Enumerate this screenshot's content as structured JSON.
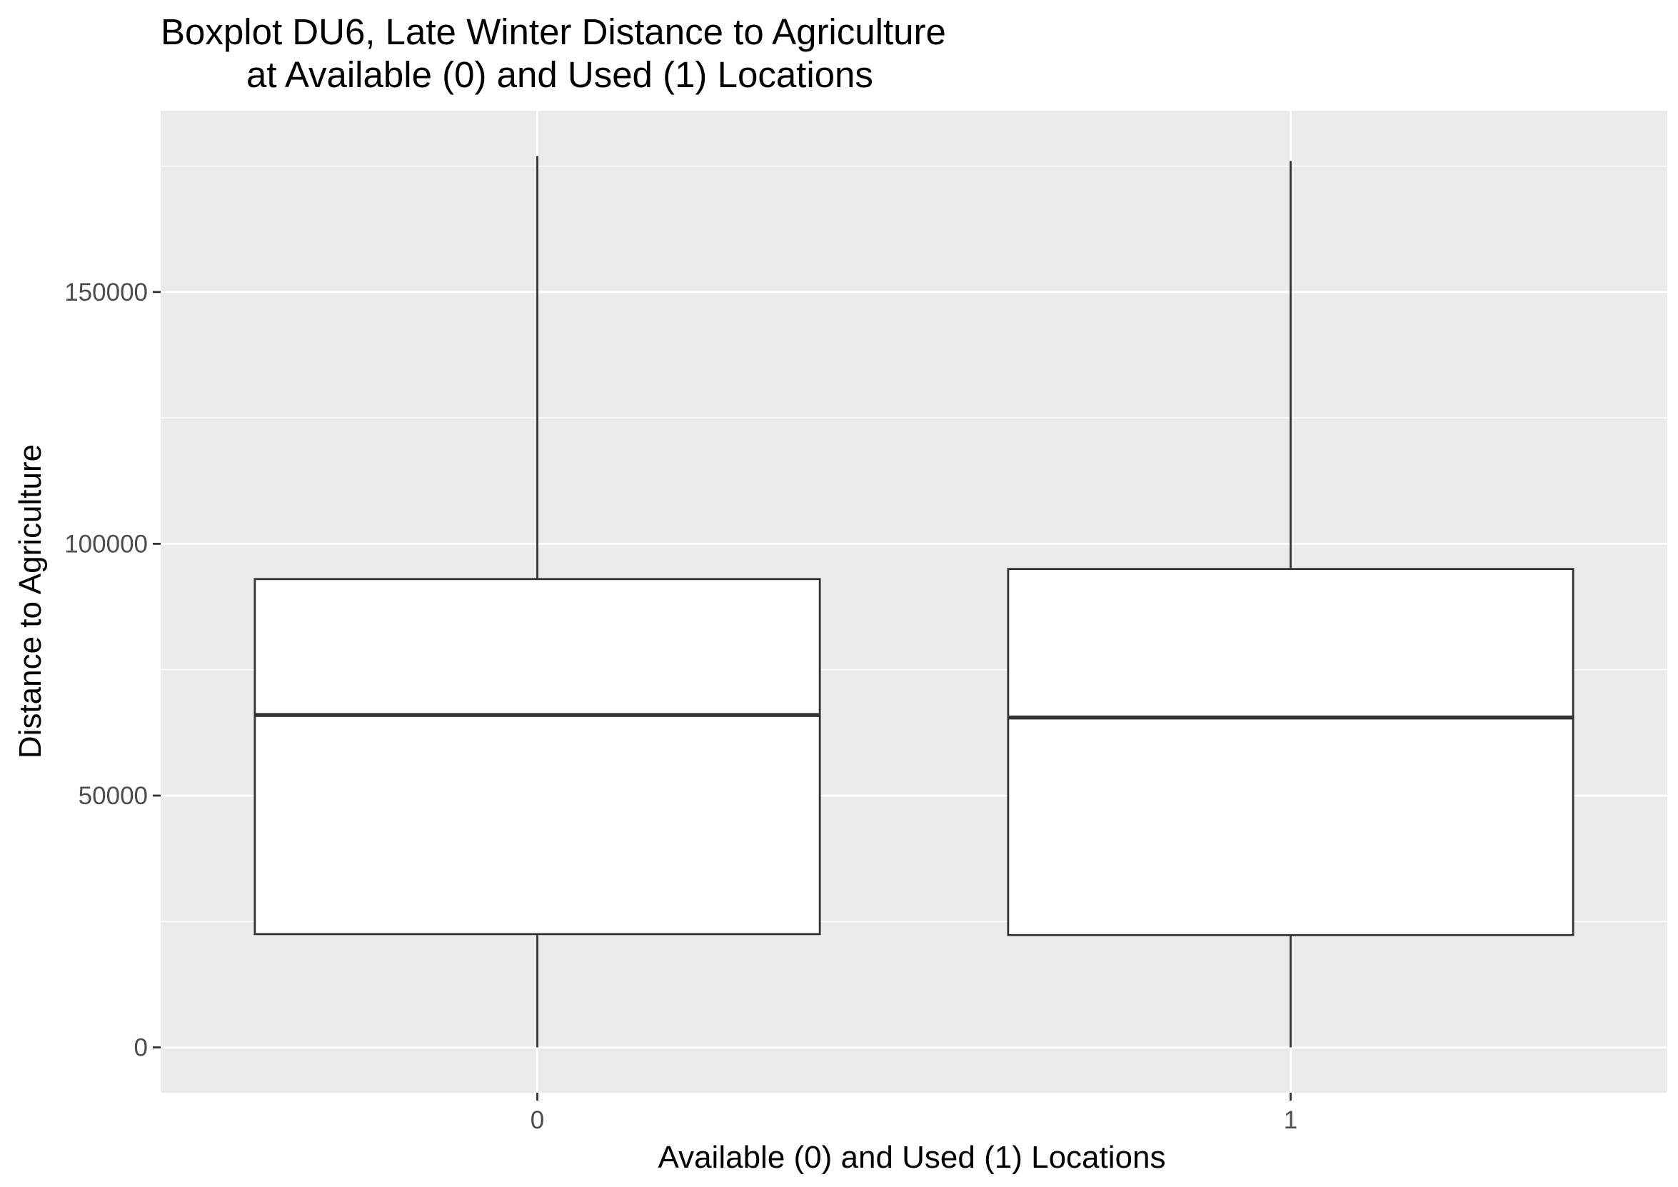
{
  "chart_data": {
    "type": "boxplot",
    "title_lines": [
      "Boxplot DU6, Late Winter Distance to Agriculture",
      "at Available (0) and Used (1) Locations"
    ],
    "xlabel": "Available (0) and Used (1) Locations",
    "ylabel": "Distance to Agriculture",
    "categories": [
      "0",
      "1"
    ],
    "boxes": [
      {
        "category": "0",
        "whisker_low": 0,
        "q1": 22500,
        "median": 66000,
        "q3": 93000,
        "whisker_high": 177000
      },
      {
        "category": "1",
        "whisker_low": 0,
        "q1": 22300,
        "median": 65500,
        "q3": 95000,
        "whisker_high": 176000
      }
    ],
    "ylim": [
      -9000,
      186000
    ],
    "yticks": [
      0,
      50000,
      100000,
      150000
    ],
    "ytick_labels": [
      "0",
      "50000",
      "100000",
      "150000"
    ],
    "grid": true,
    "colors": {
      "panel_bg": "#ebebeb",
      "grid": "#ffffff",
      "box_fill": "#ffffff",
      "box_line": "#333333",
      "tick": "#333333",
      "tick_label": "#4d4d4d"
    }
  }
}
